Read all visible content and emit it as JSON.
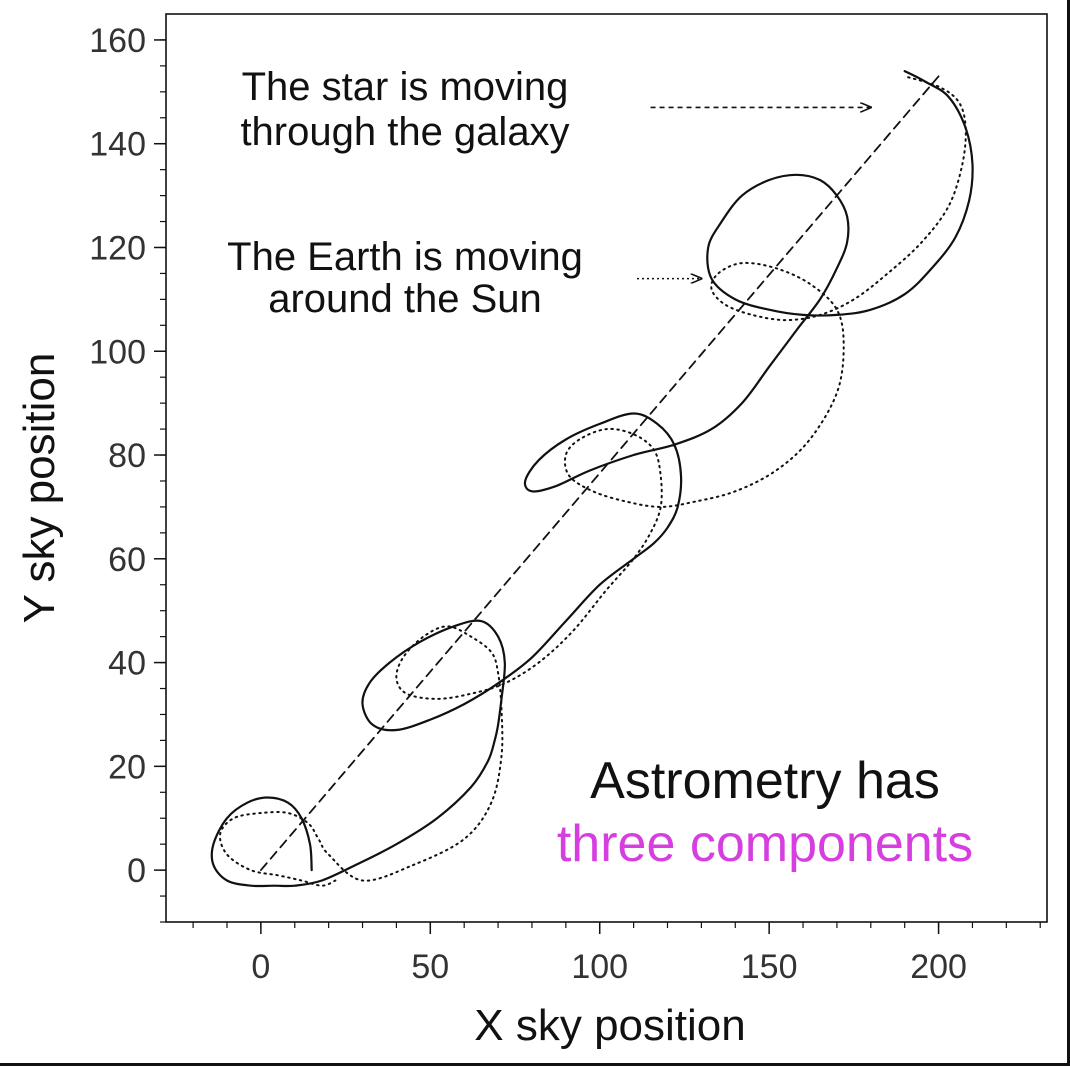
{
  "chart_data": {
    "type": "line",
    "title": "",
    "xlabel": "X sky position",
    "ylabel": "Y sky position",
    "xlim": [
      -28,
      232
    ],
    "ylim": [
      -10,
      165
    ],
    "x_ticks": [
      0,
      50,
      100,
      150,
      200
    ],
    "y_ticks": [
      0,
      20,
      40,
      60,
      80,
      100,
      120,
      140,
      160
    ],
    "grid": false,
    "legend": "none",
    "series": [
      {
        "style": "solid",
        "color": "#111111",
        "x": [
          15,
          14.5,
          12,
          8,
          2,
          -4,
          -10,
          -14,
          -14,
          -10,
          -3,
          4,
          10,
          18,
          28,
          40,
          52,
          62,
          67,
          69,
          70,
          71,
          72,
          70,
          65,
          57,
          47,
          38,
          32,
          30,
          33,
          40,
          50,
          60,
          70,
          80,
          90,
          100,
          110,
          116,
          120,
          123,
          124,
          122,
          117,
          110,
          100,
          90,
          82,
          78,
          80,
          87,
          97,
          110,
          122,
          133,
          142,
          150,
          158,
          165,
          170,
          173,
          173,
          170,
          165,
          158,
          150,
          142,
          136,
          132,
          133,
          140,
          150,
          160,
          170,
          180,
          190,
          198,
          205,
          209,
          210,
          208,
          203,
          196,
          190
        ],
        "y": [
          0,
          5,
          10,
          13,
          14,
          13,
          10,
          5,
          1,
          -2,
          -3,
          -3,
          -3,
          -2,
          1,
          5,
          10,
          16,
          21,
          25,
          28,
          33,
          40,
          45,
          48,
          47,
          44,
          40,
          36,
          32,
          28,
          27,
          29,
          32,
          36,
          41,
          48,
          55,
          60,
          63,
          66,
          70,
          76,
          82,
          86,
          88,
          86,
          83,
          79,
          75,
          73,
          74,
          77,
          80,
          82,
          85,
          90,
          97,
          104,
          110,
          116,
          121,
          126,
          130,
          133,
          134,
          133,
          130,
          125,
          120,
          114,
          110,
          108,
          107,
          107,
          108,
          111,
          116,
          122,
          129,
          136,
          143,
          149,
          152,
          154
        ]
      },
      {
        "style": "dotted",
        "color": "#111111",
        "x": [
          22,
          18,
          12,
          5,
          -3,
          -10,
          -12,
          -8,
          0,
          8,
          14,
          17,
          20,
          30,
          45,
          60,
          68,
          71,
          71,
          70,
          68,
          62,
          55,
          48,
          42,
          40,
          43,
          52,
          62,
          72,
          82,
          92,
          102,
          110,
          115,
          118,
          118,
          116,
          110,
          102,
          94,
          90,
          91,
          98,
          108,
          118,
          128,
          140,
          152,
          162,
          170,
          172,
          170,
          162,
          152,
          142,
          135,
          133,
          137,
          145,
          155,
          165,
          175,
          185,
          195,
          203,
          207,
          208,
          206,
          200,
          190
        ],
        "y": [
          -2,
          -3,
          -2,
          -1,
          0,
          3,
          7,
          10,
          11,
          11,
          9,
          6,
          3,
          -2,
          1,
          6,
          13,
          22,
          31,
          38,
          42,
          45,
          47,
          45,
          41,
          37,
          34,
          33,
          34,
          36,
          40,
          46,
          54,
          60,
          65,
          70,
          76,
          81,
          84,
          85,
          83,
          80,
          76,
          73,
          71,
          70,
          71,
          73,
          77,
          83,
          92,
          101,
          108,
          113,
          116,
          117,
          115,
          112,
          109,
          107,
          106,
          107,
          110,
          115,
          121,
          128,
          136,
          143,
          148,
          151,
          153
        ]
      },
      {
        "style": "dashed",
        "color": "#111111",
        "x": [
          0,
          200
        ],
        "y": [
          0,
          153
        ]
      }
    ],
    "annotations": [
      {
        "lines": [
          "The star is moving",
          "through the galaxy"
        ],
        "arrow_from": [
          115,
          147
        ],
        "arrow_to": [
          180,
          147
        ]
      },
      {
        "lines": [
          "The Earth is moving",
          "around the Sun"
        ],
        "arrow_from": [
          111,
          114
        ],
        "arrow_to": [
          130,
          114
        ]
      }
    ],
    "headline": {
      "line1": "Astrometry has",
      "line2": "three components",
      "line1_color": "#111111",
      "line2_color": "#d63ee0"
    }
  }
}
